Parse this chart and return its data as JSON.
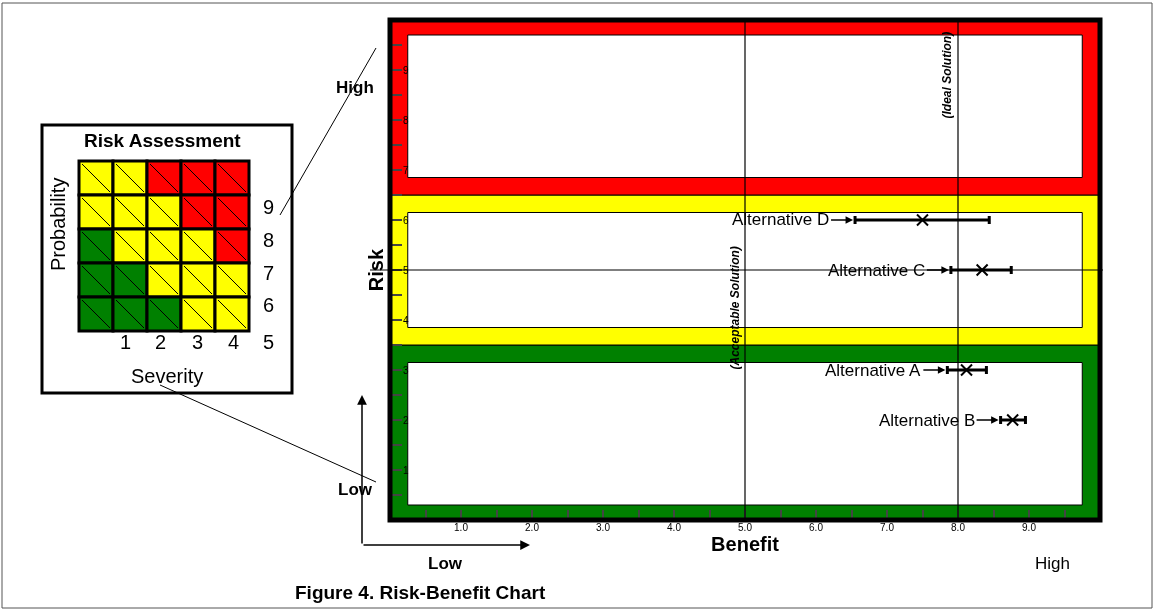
{
  "chart_data": {
    "type": "scatter",
    "title": "Figure 4. Risk-Benefit Chart",
    "xlabel": "Benefit",
    "ylabel": "Risk",
    "x": [
      8.12,
      8.77,
      8.34,
      7.5
    ],
    "values": [
      3,
      2,
      5,
      6
    ],
    "xerrors": [
      [
        7.85,
        8.4
      ],
      [
        8.6,
        8.95
      ],
      [
        7.9,
        8.75
      ],
      [
        6.55,
        8.44
      ]
    ],
    "color": "#000000",
    "marker": "cross",
    "xlim": [
      0,
      10
    ],
    "ylim": [
      0,
      10
    ],
    "xticks": [
      {
        "value": 1,
        "label": "1.0"
      },
      {
        "value": 2,
        "label": "2.0"
      },
      {
        "value": 3,
        "label": "3.0"
      },
      {
        "value": 4,
        "label": "4.0"
      },
      {
        "value": 5,
        "label": "5.0"
      },
      {
        "value": 6,
        "label": "6.0"
      },
      {
        "value": 7,
        "label": "7.0"
      },
      {
        "value": 8,
        "label": "8.0"
      },
      {
        "value": 9,
        "label": "9.0"
      }
    ],
    "yticks": [
      1,
      2,
      3,
      4,
      5,
      6,
      7,
      8,
      9
    ],
    "bands": [
      {
        "axis": "y",
        "from": 0,
        "to": 3.5,
        "color": "#008000"
      },
      {
        "axis": "y",
        "from": 3.5,
        "to": 6.5,
        "color": "#ffff00"
      },
      {
        "axis": "y",
        "from": 6.5,
        "to": 10,
        "color": "#ff0000"
      },
      {
        "axis": "y",
        "from": 0.3,
        "to": 3.15,
        "color": "#ffffff"
      },
      {
        "axis": "y",
        "from": 3.85,
        "to": 6.15,
        "color": "#ffffff"
      },
      {
        "axis": "y",
        "from": 6.85,
        "to": 9.7,
        "color": "#ffffff"
      }
    ],
    "ref_lines": [
      {
        "axis": "x",
        "value": 5,
        "label": "(Acceptable Solution)"
      },
      {
        "axis": "x",
        "value": 8,
        "label": "(Ideal Solution)"
      },
      {
        "axis": "y",
        "value": 5
      }
    ],
    "annotations": [
      {
        "text": "Alternative A",
        "x": 7.85,
        "y": 3
      },
      {
        "text": "Alternative B",
        "x": 8.6,
        "y": 2
      },
      {
        "text": "Alternative C",
        "x": 7.9,
        "y": 5
      },
      {
        "text": "Alternative D",
        "x": 6.55,
        "y": 6
      },
      "High",
      "Low",
      "Low",
      "High",
      "Risk Assessment",
      "Probability",
      "Severity",
      "1",
      "2",
      "3",
      "4",
      "5",
      "6",
      "7",
      "8",
      "9"
    ],
    "line_style": "solid"
  }
}
